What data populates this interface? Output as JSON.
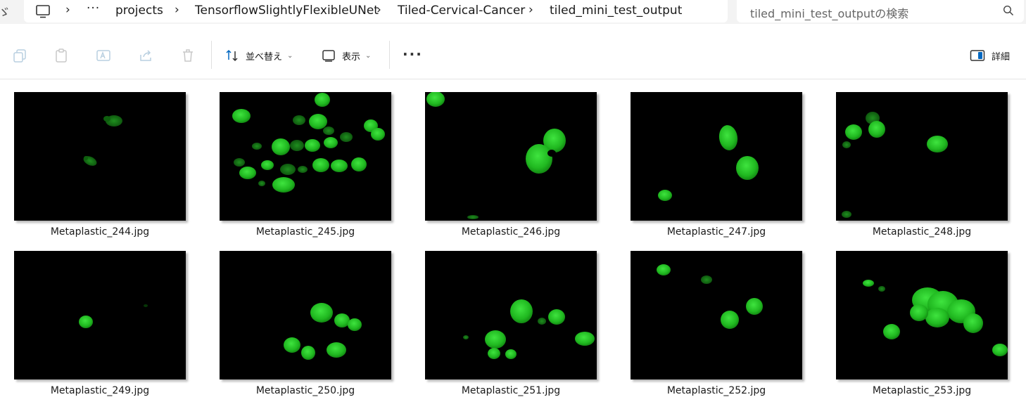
{
  "breadcrumb": {
    "items": [
      "projects",
      "TensorflowSlightlyFlexibleUNet",
      "Tiled-Cervical-Cancer",
      "tiled_mini_test_output"
    ],
    "more": "···"
  },
  "search": {
    "placeholder": "tiled_mini_test_outputの検索"
  },
  "toolbar": {
    "sort_label": "並べ替え",
    "view_label": "表示",
    "more": "···",
    "details_label": "詳細"
  },
  "files": [
    {
      "name": "Metaplastic_244.jpg"
    },
    {
      "name": "Metaplastic_245.jpg"
    },
    {
      "name": "Metaplastic_246.jpg"
    },
    {
      "name": "Metaplastic_247.jpg"
    },
    {
      "name": "Metaplastic_248.jpg"
    },
    {
      "name": "Metaplastic_249.jpg"
    },
    {
      "name": "Metaplastic_250.jpg"
    },
    {
      "name": "Metaplastic_251.jpg"
    },
    {
      "name": "Metaplastic_252.jpg"
    },
    {
      "name": "Metaplastic_253.jpg"
    }
  ],
  "colors": {
    "cell_green": "#22c022",
    "accent": "#0067c0"
  }
}
